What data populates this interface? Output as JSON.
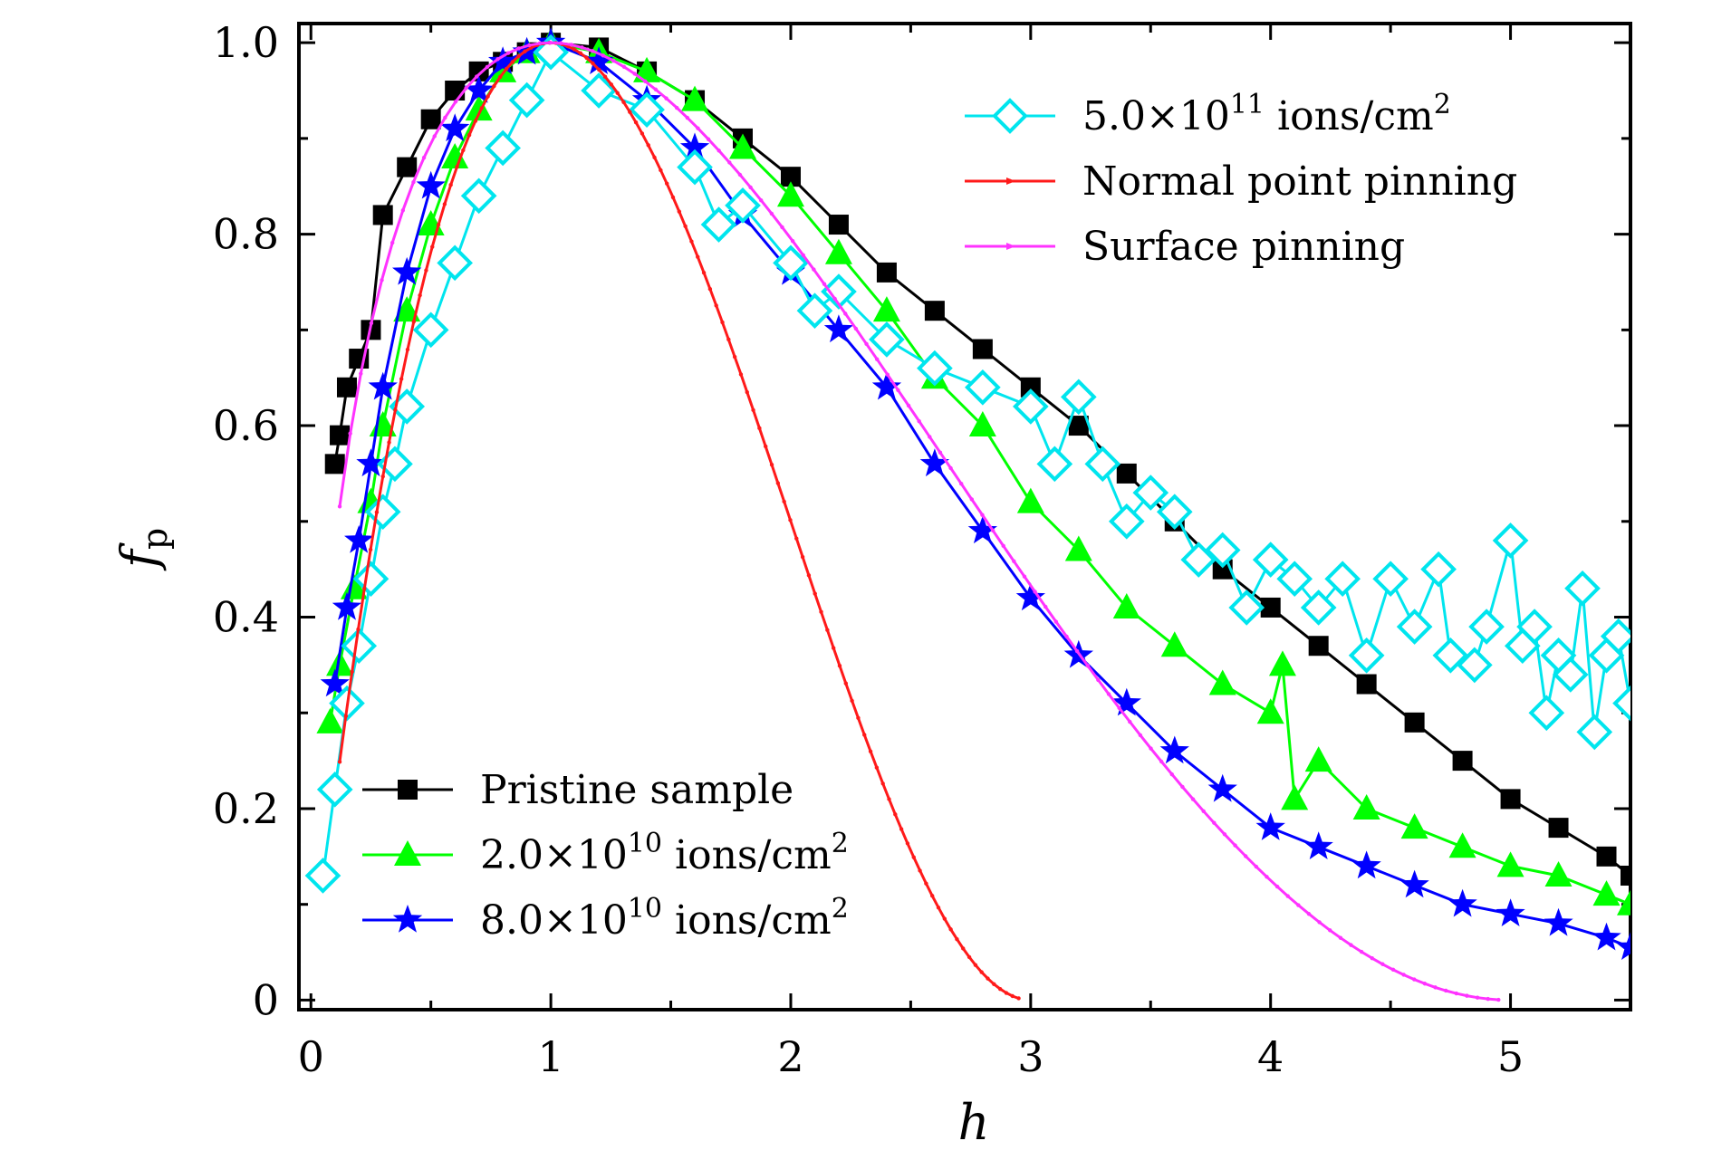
{
  "chart_data": {
    "type": "line",
    "xlabel": "h",
    "ylabel": "f",
    "ylabel_sub": "p",
    "xlim": [
      -0.05,
      5.5
    ],
    "ylim": [
      -0.01,
      1.02
    ],
    "x_ticks": [
      0,
      1,
      2,
      3,
      4,
      5
    ],
    "x_tick_labels": [
      "0",
      "1",
      "2",
      "3",
      "4",
      "5"
    ],
    "y_ticks": [
      0,
      0.2,
      0.4,
      0.6,
      0.8,
      1.0
    ],
    "y_tick_labels": [
      "0",
      "0.2",
      "0.4",
      "0.6",
      "0.8",
      "1.0"
    ],
    "series": [
      {
        "name": "Pristine sample",
        "legend": {
          "before": "Pristine sample"
        },
        "color": "#000000",
        "marker": "square",
        "points": [
          [
            0.1,
            0.56
          ],
          [
            0.12,
            0.59
          ],
          [
            0.15,
            0.64
          ],
          [
            0.2,
            0.67
          ],
          [
            0.25,
            0.7
          ],
          [
            0.3,
            0.82
          ],
          [
            0.4,
            0.87
          ],
          [
            0.5,
            0.92
          ],
          [
            0.6,
            0.95
          ],
          [
            0.7,
            0.97
          ],
          [
            0.8,
            0.98
          ],
          [
            0.9,
            0.99
          ],
          [
            1.0,
            1.0
          ],
          [
            1.2,
            0.995
          ],
          [
            1.4,
            0.97
          ],
          [
            1.6,
            0.94
          ],
          [
            1.8,
            0.9
          ],
          [
            2.0,
            0.86
          ],
          [
            2.2,
            0.81
          ],
          [
            2.4,
            0.76
          ],
          [
            2.6,
            0.72
          ],
          [
            2.8,
            0.68
          ],
          [
            3.0,
            0.64
          ],
          [
            3.2,
            0.6
          ],
          [
            3.4,
            0.55
          ],
          [
            3.6,
            0.5
          ],
          [
            3.8,
            0.45
          ],
          [
            4.0,
            0.41
          ],
          [
            4.2,
            0.37
          ],
          [
            4.4,
            0.33
          ],
          [
            4.6,
            0.29
          ],
          [
            4.8,
            0.25
          ],
          [
            5.0,
            0.21
          ],
          [
            5.2,
            0.18
          ],
          [
            5.4,
            0.15
          ],
          [
            5.5,
            0.13
          ]
        ]
      },
      {
        "name": "2.0×10^10 ions/cm^2",
        "legend": {
          "before": "2.0×10",
          "sup": "10",
          "after": " ions/cm",
          "sup2": "2"
        },
        "color": "#00ff00",
        "marker": "triangle",
        "points": [
          [
            0.08,
            0.29
          ],
          [
            0.12,
            0.35
          ],
          [
            0.18,
            0.43
          ],
          [
            0.25,
            0.52
          ],
          [
            0.3,
            0.6
          ],
          [
            0.4,
            0.72
          ],
          [
            0.5,
            0.81
          ],
          [
            0.6,
            0.88
          ],
          [
            0.7,
            0.93
          ],
          [
            0.8,
            0.97
          ],
          [
            0.9,
            0.99
          ],
          [
            1.0,
            1.0
          ],
          [
            1.2,
            0.99
          ],
          [
            1.4,
            0.97
          ],
          [
            1.6,
            0.94
          ],
          [
            1.8,
            0.89
          ],
          [
            2.0,
            0.84
          ],
          [
            2.2,
            0.78
          ],
          [
            2.4,
            0.72
          ],
          [
            2.6,
            0.65
          ],
          [
            2.8,
            0.6
          ],
          [
            3.0,
            0.52
          ],
          [
            3.2,
            0.47
          ],
          [
            3.4,
            0.41
          ],
          [
            3.6,
            0.37
          ],
          [
            3.8,
            0.33
          ],
          [
            4.0,
            0.3
          ],
          [
            4.05,
            0.35
          ],
          [
            4.1,
            0.21
          ],
          [
            4.2,
            0.25
          ],
          [
            4.4,
            0.2
          ],
          [
            4.6,
            0.18
          ],
          [
            4.8,
            0.16
          ],
          [
            5.0,
            0.14
          ],
          [
            5.2,
            0.13
          ],
          [
            5.4,
            0.11
          ],
          [
            5.5,
            0.1
          ]
        ]
      },
      {
        "name": "8.0×10^10 ions/cm^2",
        "legend": {
          "before": "8.0×10",
          "sup": "10",
          "after": " ions/cm",
          "sup2": "2"
        },
        "color": "#0000ff",
        "marker": "star",
        "points": [
          [
            0.1,
            0.33
          ],
          [
            0.15,
            0.41
          ],
          [
            0.2,
            0.48
          ],
          [
            0.25,
            0.56
          ],
          [
            0.3,
            0.64
          ],
          [
            0.4,
            0.76
          ],
          [
            0.5,
            0.85
          ],
          [
            0.6,
            0.91
          ],
          [
            0.7,
            0.95
          ],
          [
            0.8,
            0.98
          ],
          [
            0.9,
            0.99
          ],
          [
            1.0,
            1.0
          ],
          [
            1.2,
            0.98
          ],
          [
            1.4,
            0.94
          ],
          [
            1.6,
            0.89
          ],
          [
            1.8,
            0.82
          ],
          [
            2.0,
            0.76
          ],
          [
            2.2,
            0.7
          ],
          [
            2.4,
            0.64
          ],
          [
            2.6,
            0.56
          ],
          [
            2.8,
            0.49
          ],
          [
            3.0,
            0.42
          ],
          [
            3.2,
            0.36
          ],
          [
            3.4,
            0.31
          ],
          [
            3.6,
            0.26
          ],
          [
            3.8,
            0.22
          ],
          [
            4.0,
            0.18
          ],
          [
            4.2,
            0.16
          ],
          [
            4.4,
            0.14
          ],
          [
            4.6,
            0.12
          ],
          [
            4.8,
            0.1
          ],
          [
            5.0,
            0.09
          ],
          [
            5.2,
            0.08
          ],
          [
            5.4,
            0.065
          ],
          [
            5.5,
            0.055
          ]
        ]
      },
      {
        "name": "5.0×10^11 ions/cm^2",
        "legend": {
          "before": "5.0×10",
          "sup": "11",
          "after": " ions/cm",
          "sup2": "2"
        },
        "color": "#00e5ee",
        "marker": "diamond",
        "points": [
          [
            0.05,
            0.13
          ],
          [
            0.1,
            0.22
          ],
          [
            0.15,
            0.31
          ],
          [
            0.2,
            0.37
          ],
          [
            0.25,
            0.44
          ],
          [
            0.3,
            0.51
          ],
          [
            0.35,
            0.56
          ],
          [
            0.4,
            0.62
          ],
          [
            0.5,
            0.7
          ],
          [
            0.6,
            0.77
          ],
          [
            0.7,
            0.84
          ],
          [
            0.8,
            0.89
          ],
          [
            0.9,
            0.94
          ],
          [
            1.0,
            0.99
          ],
          [
            1.2,
            0.95
          ],
          [
            1.4,
            0.93
          ],
          [
            1.6,
            0.87
          ],
          [
            1.7,
            0.81
          ],
          [
            1.8,
            0.83
          ],
          [
            2.0,
            0.77
          ],
          [
            2.1,
            0.72
          ],
          [
            2.2,
            0.74
          ],
          [
            2.4,
            0.69
          ],
          [
            2.6,
            0.66
          ],
          [
            2.8,
            0.64
          ],
          [
            3.0,
            0.62
          ],
          [
            3.1,
            0.56
          ],
          [
            3.2,
            0.63
          ],
          [
            3.3,
            0.56
          ],
          [
            3.4,
            0.5
          ],
          [
            3.5,
            0.53
          ],
          [
            3.6,
            0.51
          ],
          [
            3.7,
            0.46
          ],
          [
            3.8,
            0.47
          ],
          [
            3.9,
            0.41
          ],
          [
            4.0,
            0.46
          ],
          [
            4.1,
            0.44
          ],
          [
            4.2,
            0.41
          ],
          [
            4.3,
            0.44
          ],
          [
            4.4,
            0.36
          ],
          [
            4.5,
            0.44
          ],
          [
            4.6,
            0.39
          ],
          [
            4.7,
            0.45
          ],
          [
            4.75,
            0.36
          ],
          [
            4.85,
            0.35
          ],
          [
            4.9,
            0.39
          ],
          [
            5.0,
            0.48
          ],
          [
            5.05,
            0.37
          ],
          [
            5.1,
            0.39
          ],
          [
            5.15,
            0.3
          ],
          [
            5.2,
            0.36
          ],
          [
            5.25,
            0.34
          ],
          [
            5.3,
            0.43
          ],
          [
            5.35,
            0.28
          ],
          [
            5.4,
            0.36
          ],
          [
            5.45,
            0.38
          ],
          [
            5.5,
            0.31
          ]
        ]
      },
      {
        "name": "Normal point pinning",
        "legend": {
          "before": "Normal point pinning"
        },
        "color": "#ff1a1a",
        "marker": "dot",
        "model": "normal",
        "x_range": [
          0.12,
          2.95
        ]
      },
      {
        "name": "Surface pinning",
        "legend": {
          "before": "Surface pinning"
        },
        "color": "#ff33ff",
        "marker": "dot",
        "model": "surface",
        "x_range": [
          0.12,
          4.95
        ]
      }
    ],
    "legends": [
      {
        "position": "top-right",
        "series": [
          3,
          4,
          5
        ]
      },
      {
        "position": "bottom-left",
        "series": [
          0,
          1,
          2
        ]
      }
    ]
  }
}
